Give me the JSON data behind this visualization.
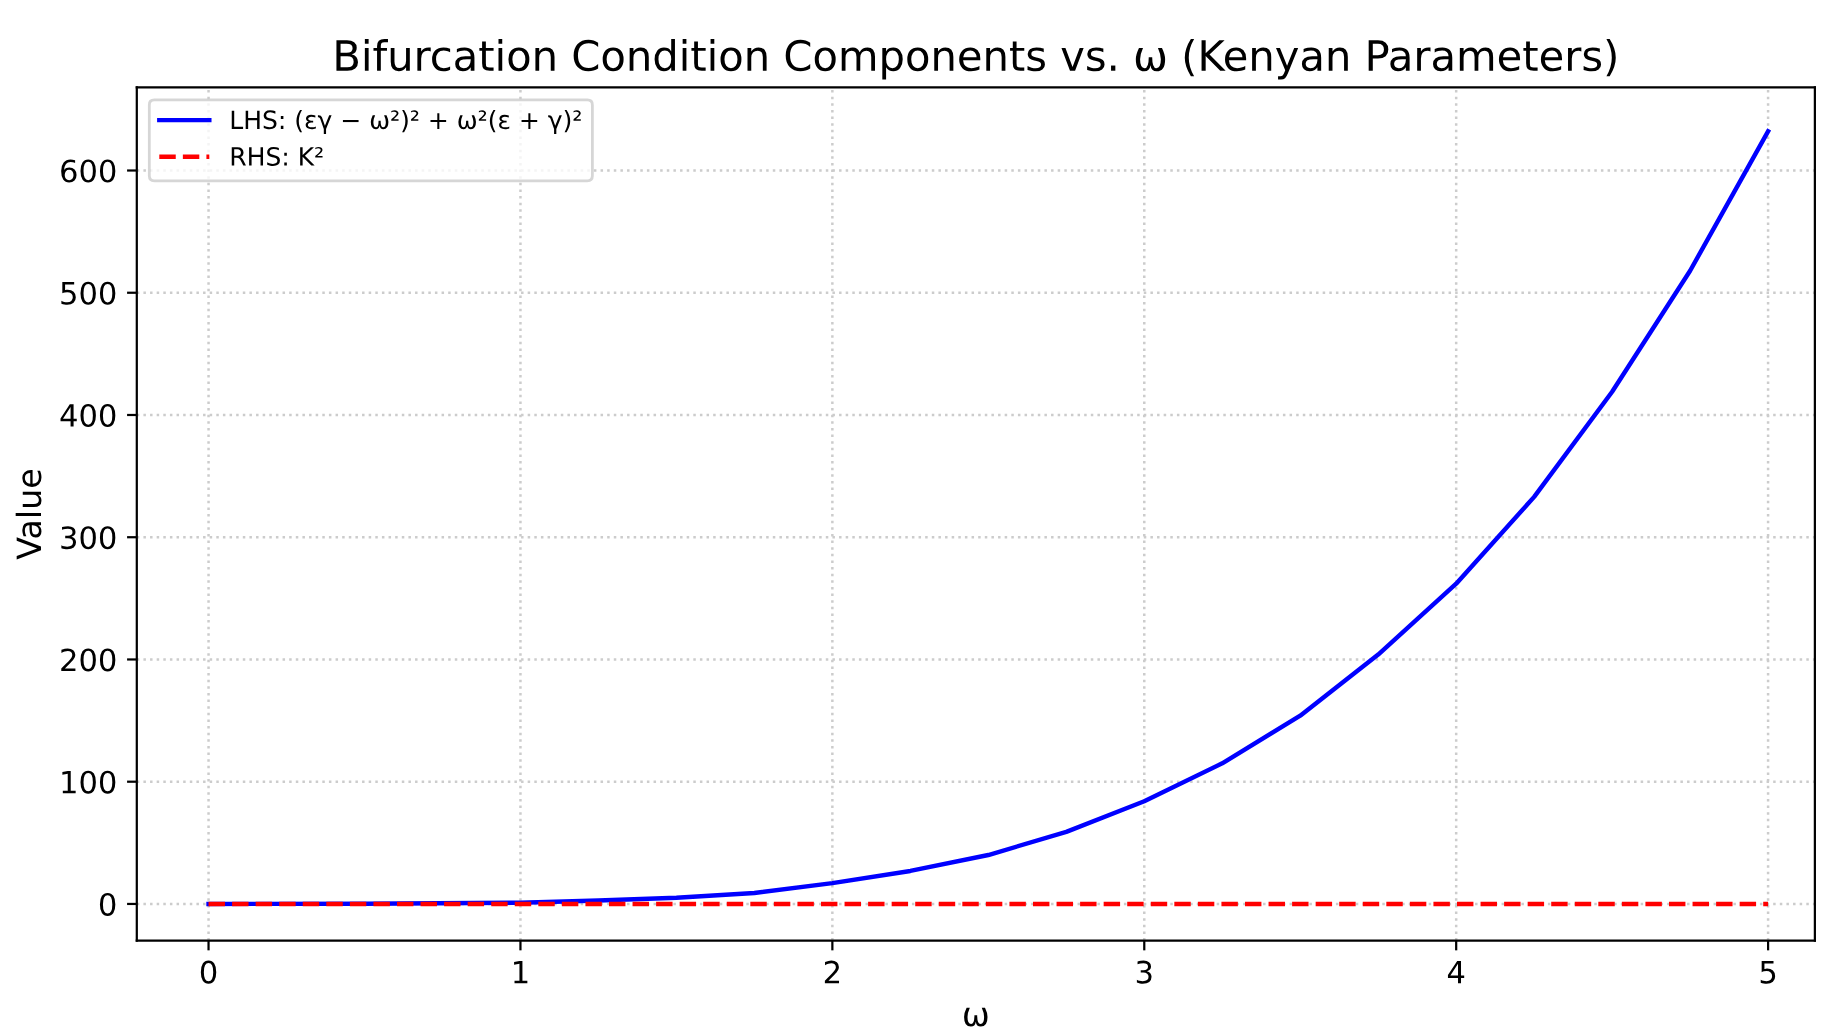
{
  "chart_data": {
    "type": "line",
    "title": "Bifurcation Condition Components vs. ω (Kenyan Parameters)",
    "xlabel": "ω",
    "ylabel": "Value",
    "series": [
      {
        "name": "LHS: (εγ − ω²)² + ω²(ε + γ)²",
        "color": "#0000ff",
        "line_style": "solid",
        "x": [
          0,
          0.5,
          1,
          1.25,
          1.5,
          1.75,
          2,
          2.25,
          2.5,
          2.75,
          3,
          3.25,
          3.5,
          3.75,
          4,
          4.25,
          4.5,
          4.75,
          5
        ],
        "values": [
          0,
          0.2,
          1,
          2.8,
          5,
          9,
          17,
          27,
          40,
          59,
          84,
          115,
          154,
          204,
          262,
          333,
          419,
          518,
          632
        ]
      },
      {
        "name": "RHS: K²",
        "color": "#ff0000",
        "line_style": "dashed",
        "x": [
          0,
          5
        ],
        "values": [
          0,
          0
        ]
      }
    ],
    "xlim": [
      -0.23,
      5.15
    ],
    "ylim": [
      -30,
      668
    ],
    "xticks": [
      0,
      1,
      2,
      3,
      4,
      5
    ],
    "yticks": [
      0,
      100,
      200,
      300,
      400,
      500,
      600
    ],
    "grid": true,
    "legend": "top left",
    "marker": "none"
  }
}
